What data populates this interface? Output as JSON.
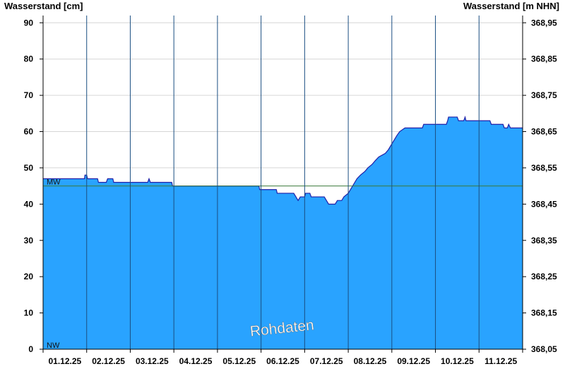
{
  "chart_data": {
    "type": "area",
    "ylabel_left": "Wasserstand [cm]",
    "ylabel_right": "Wasserstand [m NHN]",
    "xlabel": "",
    "title": "",
    "x_tick_labels": [
      "01.12.25",
      "02.12.25",
      "03.12.25",
      "04.12.25",
      "05.12.25",
      "06.12.25",
      "07.12.25",
      "08.12.25",
      "09.12.25",
      "10.12.25",
      "11.12.25"
    ],
    "y_left_ticks": [
      0,
      10,
      20,
      30,
      40,
      50,
      60,
      70,
      80,
      90
    ],
    "y_right_ticks": [
      "368,05",
      "368,15",
      "368,25",
      "368,35",
      "368,45",
      "368,55",
      "368,65",
      "368,75",
      "368,85",
      "368,95"
    ],
    "ylim": [
      0,
      92
    ],
    "x_range_days": [
      0,
      11
    ],
    "grid": "horizontal gridlines and vertical day separators",
    "series": [
      {
        "fill_color": "#29A3FF",
        "line_color": "#1F1FA8",
        "points": [
          [
            0.0,
            47
          ],
          [
            0.95,
            47
          ],
          [
            0.96,
            48
          ],
          [
            1.0,
            48
          ],
          [
            1.02,
            47
          ],
          [
            1.25,
            47
          ],
          [
            1.27,
            46
          ],
          [
            1.45,
            46
          ],
          [
            1.48,
            47
          ],
          [
            1.6,
            47
          ],
          [
            1.62,
            46
          ],
          [
            2.4,
            46
          ],
          [
            2.43,
            47
          ],
          [
            2.46,
            46
          ],
          [
            2.95,
            46
          ],
          [
            2.97,
            45
          ],
          [
            4.95,
            45
          ],
          [
            4.97,
            44
          ],
          [
            5.35,
            44
          ],
          [
            5.37,
            43
          ],
          [
            5.75,
            43
          ],
          [
            5.8,
            42
          ],
          [
            5.85,
            41
          ],
          [
            5.9,
            42
          ],
          [
            6.0,
            42
          ],
          [
            6.02,
            43
          ],
          [
            6.12,
            43
          ],
          [
            6.15,
            42
          ],
          [
            6.45,
            42
          ],
          [
            6.5,
            41
          ],
          [
            6.55,
            40
          ],
          [
            6.7,
            40
          ],
          [
            6.75,
            41
          ],
          [
            6.85,
            41
          ],
          [
            6.9,
            42
          ],
          [
            7.0,
            43
          ],
          [
            7.05,
            44
          ],
          [
            7.1,
            45
          ],
          [
            7.15,
            46
          ],
          [
            7.2,
            47
          ],
          [
            7.28,
            48
          ],
          [
            7.38,
            49
          ],
          [
            7.45,
            50
          ],
          [
            7.55,
            51
          ],
          [
            7.62,
            52
          ],
          [
            7.7,
            53
          ],
          [
            7.85,
            54
          ],
          [
            7.92,
            55
          ],
          [
            7.97,
            56
          ],
          [
            8.02,
            57
          ],
          [
            8.07,
            58
          ],
          [
            8.12,
            59
          ],
          [
            8.18,
            60
          ],
          [
            8.3,
            61
          ],
          [
            8.7,
            61
          ],
          [
            8.73,
            62
          ],
          [
            9.25,
            62
          ],
          [
            9.28,
            63
          ],
          [
            9.3,
            64
          ],
          [
            9.5,
            64
          ],
          [
            9.53,
            63
          ],
          [
            9.65,
            63
          ],
          [
            9.68,
            64
          ],
          [
            9.7,
            63
          ],
          [
            10.25,
            63
          ],
          [
            10.28,
            62
          ],
          [
            10.55,
            62
          ],
          [
            10.58,
            61
          ],
          [
            10.65,
            61
          ],
          [
            10.68,
            62
          ],
          [
            10.72,
            61
          ],
          [
            11.0,
            61
          ]
        ]
      }
    ],
    "reference_lines": [
      {
        "label": "MW",
        "value": 45,
        "color": "#3A7A3A"
      },
      {
        "label": "NW",
        "value": 0,
        "color": "#000000"
      }
    ],
    "watermark": "Rohdaten"
  }
}
